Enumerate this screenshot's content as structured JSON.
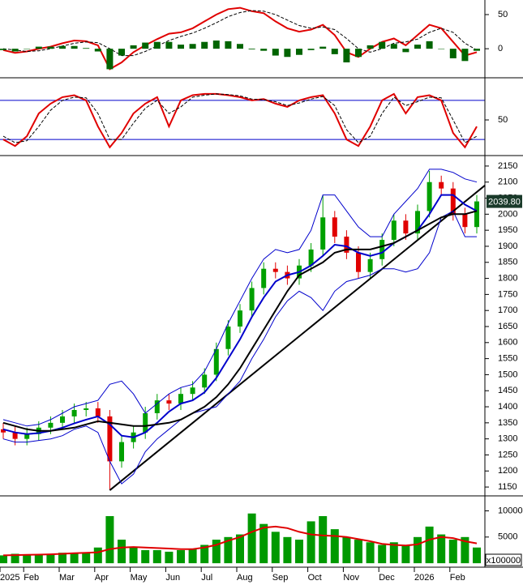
{
  "chart_data": [
    {
      "type": "line",
      "series": [
        {
          "color": "#e00000",
          "values": [
            -2,
            -6,
            -4,
            0,
            3,
            8,
            12,
            11,
            5,
            -30,
            -20,
            -5,
            5,
            14,
            22,
            24,
            30,
            40,
            50,
            58,
            60,
            55,
            52,
            40,
            30,
            25,
            28,
            35,
            20,
            -5,
            -12,
            0,
            10,
            15,
            5,
            20,
            35,
            30,
            10,
            -10,
            -5
          ]
        },
        {
          "color": "#000000",
          "style": "dashed",
          "values": [
            0,
            -2,
            -4,
            -3,
            0,
            4,
            8,
            10,
            9,
            0,
            -10,
            -10,
            -4,
            4,
            12,
            18,
            23,
            30,
            38,
            47,
            53,
            56,
            55,
            50,
            42,
            34,
            30,
            32,
            28,
            15,
            0,
            -5,
            0,
            8,
            10,
            14,
            24,
            30,
            24,
            8,
            -2
          ]
        },
        {
          "color": "#006400",
          "style": "bar",
          "values": [
            -2,
            -4,
            0,
            3,
            3,
            4,
            4,
            1,
            -4,
            -30,
            -10,
            5,
            9,
            10,
            10,
            6,
            7,
            10,
            12,
            11,
            7,
            -1,
            -3,
            -10,
            -12,
            -9,
            -2,
            3,
            -8,
            -20,
            -12,
            5,
            10,
            7,
            -5,
            6,
            11,
            0,
            -14,
            -18,
            -3
          ]
        }
      ],
      "ylim": [
        -39,
        69
      ],
      "yticks": [
        0,
        50
      ]
    },
    {
      "type": "line",
      "series": [
        {
          "color": "#e00000",
          "values": [
            20,
            10,
            25,
            60,
            75,
            85,
            88,
            80,
            40,
            8,
            30,
            60,
            75,
            85,
            40,
            80,
            88,
            90,
            90,
            88,
            85,
            80,
            82,
            75,
            70,
            80,
            85,
            88,
            60,
            20,
            10,
            40,
            80,
            90,
            60,
            85,
            88,
            80,
            30,
            8,
            40
          ]
        },
        {
          "color": "#000000",
          "style": "dashed",
          "values": [
            25,
            15,
            18,
            40,
            65,
            80,
            85,
            84,
            60,
            20,
            20,
            45,
            68,
            80,
            60,
            70,
            85,
            88,
            90,
            89,
            87,
            82,
            81,
            78,
            72,
            76,
            82,
            86,
            72,
            35,
            15,
            25,
            60,
            85,
            72,
            78,
            85,
            84,
            50,
            15,
            25
          ]
        }
      ],
      "reference_lines": [
        20,
        80
      ],
      "reference_color": "#0000cc",
      "ylim": [
        -1,
        111
      ],
      "yticks": [
        50
      ]
    },
    {
      "type": "candlestick",
      "open": [
        1330,
        1320,
        1300,
        1315,
        1335,
        1350,
        1370,
        1390,
        1395,
        1370,
        1230,
        1290,
        1320,
        1380,
        1420,
        1410,
        1440,
        1460,
        1500,
        1580,
        1650,
        1700,
        1770,
        1830,
        1820,
        1800,
        1840,
        1890,
        1990,
        1930,
        1880,
        1820,
        1860,
        1920,
        1980,
        1940,
        2010,
        2100,
        2080,
        2000,
        1960
      ],
      "high": [
        1350,
        1340,
        1335,
        1355,
        1370,
        1390,
        1410,
        1415,
        1415,
        1390,
        1310,
        1340,
        1400,
        1440,
        1440,
        1460,
        1480,
        1520,
        1600,
        1670,
        1720,
        1790,
        1850,
        1850,
        1840,
        1860,
        1910,
        2060,
        2010,
        1950,
        1900,
        1880,
        1940,
        2000,
        2000,
        2030,
        2135,
        2120,
        2100,
        2020,
        2060
      ],
      "low": [
        1300,
        1280,
        1280,
        1295,
        1315,
        1330,
        1350,
        1370,
        1350,
        1140,
        1210,
        1270,
        1300,
        1360,
        1390,
        1390,
        1420,
        1440,
        1480,
        1560,
        1630,
        1680,
        1750,
        1800,
        1780,
        1780,
        1820,
        1870,
        1910,
        1860,
        1800,
        1800,
        1840,
        1900,
        1920,
        1920,
        1990,
        2060,
        1980,
        1940,
        1940
      ],
      "close": [
        1320,
        1300,
        1315,
        1335,
        1350,
        1370,
        1390,
        1395,
        1370,
        1230,
        1290,
        1320,
        1380,
        1420,
        1410,
        1440,
        1460,
        1500,
        1580,
        1650,
        1700,
        1770,
        1830,
        1820,
        1800,
        1840,
        1890,
        1990,
        1930,
        1880,
        1820,
        1860,
        1920,
        1980,
        1940,
        2010,
        2100,
        2080,
        2000,
        1960,
        2039.8
      ],
      "up_color": "#00a000",
      "down_color": "#e00000",
      "series": [
        {
          "color": "#0000cc",
          "style": "thin",
          "values": [
            1360,
            1350,
            1340,
            1345,
            1360,
            1380,
            1400,
            1410,
            1420,
            1470,
            1480,
            1440,
            1380,
            1410,
            1440,
            1460,
            1470,
            1510,
            1580,
            1660,
            1730,
            1800,
            1860,
            1890,
            1880,
            1890,
            1950,
            2060,
            2060,
            2010,
            1960,
            1930,
            1930,
            2000,
            2040,
            2080,
            2140,
            2140,
            2130,
            2110,
            2100
          ]
        },
        {
          "color": "#0000cc",
          "style": "thin",
          "values": [
            1300,
            1290,
            1290,
            1295,
            1300,
            1310,
            1330,
            1340,
            1320,
            1230,
            1160,
            1190,
            1260,
            1300,
            1330,
            1360,
            1380,
            1390,
            1400,
            1440,
            1480,
            1550,
            1610,
            1680,
            1730,
            1760,
            1740,
            1700,
            1760,
            1790,
            1800,
            1810,
            1830,
            1830,
            1820,
            1830,
            1880,
            1990,
            2010,
            1930,
            1930
          ]
        },
        {
          "color": "#0000cc",
          "values": [
            1330,
            1320,
            1315,
            1318,
            1325,
            1335,
            1348,
            1360,
            1370,
            1345,
            1310,
            1305,
            1320,
            1350,
            1385,
            1410,
            1420,
            1445,
            1490,
            1550,
            1610,
            1680,
            1740,
            1790,
            1810,
            1820,
            1840,
            1870,
            1905,
            1900,
            1880,
            1870,
            1880,
            1910,
            1930,
            1950,
            2000,
            2060,
            2060,
            2030,
            2010
          ]
        },
        {
          "color": "#000000",
          "values": [
            1350,
            1340,
            1330,
            1325,
            1325,
            1330,
            1335,
            1345,
            1355,
            1350,
            1345,
            1340,
            1340,
            1345,
            1350,
            1360,
            1380,
            1400,
            1430,
            1470,
            1520,
            1580,
            1640,
            1700,
            1760,
            1810,
            1830,
            1850,
            1880,
            1890,
            1890,
            1890,
            1900,
            1910,
            1930,
            1950,
            1970,
            1990,
            2000,
            2000,
            2010
          ]
        }
      ],
      "trendlines": [
        {
          "x": [
            9,
            40.7
          ],
          "y": [
            1140,
            2090
          ]
        }
      ],
      "last_price": {
        "value": 2039.8,
        "label": "2039.80"
      },
      "ylim": [
        1130,
        2170
      ],
      "yticks": [
        1150,
        1200,
        1250,
        1300,
        1350,
        1400,
        1450,
        1500,
        1550,
        1600,
        1650,
        1700,
        1750,
        1800,
        1850,
        1900,
        1950,
        2000,
        2050,
        2100,
        2150
      ]
    },
    {
      "type": "bar",
      "categories": [
        "2025",
        null,
        "Feb",
        null,
        null,
        "Mar",
        null,
        null,
        "Apr",
        null,
        null,
        "May",
        null,
        null,
        "Jun",
        null,
        null,
        "Jul",
        null,
        null,
        "Aug",
        null,
        null,
        "Sep",
        null,
        null,
        "Oct",
        null,
        null,
        "Nov",
        null,
        null,
        "Dec",
        null,
        null,
        "2026",
        null,
        null,
        "Feb",
        null,
        null
      ],
      "values": [
        1500,
        1800,
        1500,
        1600,
        1800,
        2000,
        1800,
        2000,
        3000,
        9000,
        4500,
        3000,
        2500,
        2500,
        2200,
        2500,
        2700,
        3500,
        4500,
        5000,
        5500,
        9500,
        7500,
        6000,
        5000,
        4500,
        8000,
        9000,
        6500,
        5000,
        4500,
        4000,
        3500,
        4000,
        3500,
        5000,
        7000,
        5500,
        4500,
        5000,
        3000
      ],
      "color": "#009900",
      "series": [
        {
          "color": "#e00000",
          "values": [
            1500,
            1550,
            1600,
            1650,
            1700,
            1800,
            1900,
            2000,
            2100,
            2700,
            3000,
            3100,
            3000,
            2900,
            2800,
            2700,
            2700,
            3000,
            3500,
            4300,
            5000,
            6000,
            6800,
            7000,
            6700,
            6000,
            5500,
            5300,
            5200,
            5000,
            4600,
            4200,
            3700,
            3500,
            3400,
            3600,
            4500,
            5000,
            4800,
            4200,
            3800
          ]
        }
      ],
      "unit_label": "x100000",
      "ylim": [
        -600,
        12400
      ],
      "yticks": [
        5000,
        10000
      ]
    }
  ]
}
